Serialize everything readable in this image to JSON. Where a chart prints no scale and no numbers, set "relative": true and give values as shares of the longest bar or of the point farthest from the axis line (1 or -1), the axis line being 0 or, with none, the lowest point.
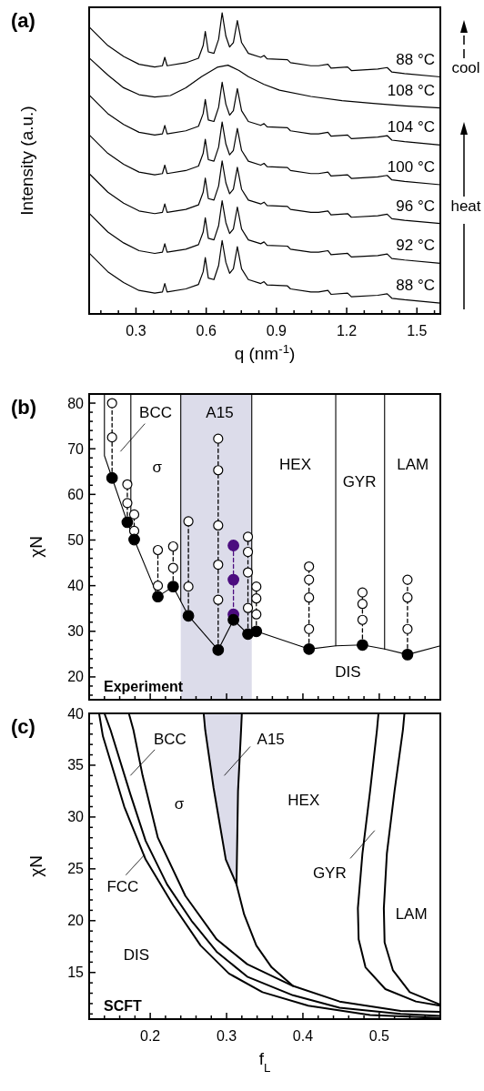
{
  "chart_data": [
    {
      "type": "line",
      "title": "(a)",
      "xlabel": "q (nm$^{-1}$)",
      "ylabel": "Intensity (a.u.)",
      "relative": true,
      "xlim": [
        0.1,
        1.6
      ],
      "xticks": [
        {
          "value": 0.15,
          "label": null
        },
        {
          "value": 0.225,
          "label": null
        },
        0.3,
        {
          "value": 0.375,
          "label": null
        },
        {
          "value": 0.45,
          "label": null
        },
        {
          "value": 0.525,
          "label": null
        },
        0.6,
        {
          "value": 0.675,
          "label": null
        },
        {
          "value": 0.75,
          "label": null
        },
        {
          "value": 0.825,
          "label": null
        },
        0.9,
        {
          "value": 0.975,
          "label": null
        },
        {
          "value": 1.05,
          "label": null
        },
        {
          "value": 1.125,
          "label": null
        },
        1.2,
        {
          "value": 1.275,
          "label": null
        },
        {
          "value": 1.35,
          "label": null
        },
        {
          "value": 1.425,
          "label": null
        },
        1.5,
        {
          "value": 1.575,
          "label": null
        }
      ],
      "x": [
        0.1,
        0.18,
        0.247,
        0.313,
        0.38,
        0.413,
        0.423,
        0.433,
        0.513,
        0.567,
        0.587,
        0.596,
        0.609,
        0.633,
        0.653,
        0.668,
        0.684,
        0.7,
        0.716,
        0.733,
        0.751,
        0.78,
        0.833,
        0.847,
        0.86,
        0.947,
        0.96,
        1.047,
        1.08,
        1.12,
        1.133,
        1.204,
        1.22,
        1.333,
        1.373,
        1.393,
        1.447,
        1.6
      ],
      "series": [
        {
          "name": "88 °C",
          "color": "#000000",
          "values": [
            0.202,
            0.14,
            0.104,
            0.078,
            0.069,
            0.073,
            0.101,
            0.073,
            0.083,
            0.098,
            0.14,
            0.187,
            0.119,
            0.114,
            0.161,
            0.244,
            0.171,
            0.135,
            0.15,
            0.223,
            0.15,
            0.114,
            0.101,
            0.107,
            0.096,
            0.093,
            0.083,
            0.073,
            0.073,
            0.078,
            0.065,
            0.069,
            0.057,
            0.062,
            0.067,
            0.052,
            0.047,
            0.036
          ]
        },
        {
          "name": "92 °C",
          "color": "#000000",
          "values": [
            0.334,
            0.272,
            0.236,
            0.21,
            0.201,
            0.205,
            0.233,
            0.205,
            0.215,
            0.23,
            0.272,
            0.319,
            0.251,
            0.246,
            0.293,
            0.376,
            0.303,
            0.267,
            0.282,
            0.355,
            0.282,
            0.246,
            0.233,
            0.239,
            0.228,
            0.225,
            0.215,
            0.205,
            0.205,
            0.21,
            0.197,
            0.201,
            0.189,
            0.194,
            0.199,
            0.184,
            0.179,
            0.168
          ]
        },
        {
          "name": "96 °C",
          "color": "#000000",
          "values": [
            0.466,
            0.404,
            0.368,
            0.342,
            0.333,
            0.337,
            0.365,
            0.337,
            0.347,
            0.362,
            0.404,
            0.451,
            0.383,
            0.378,
            0.425,
            0.508,
            0.435,
            0.399,
            0.414,
            0.487,
            0.414,
            0.378,
            0.365,
            0.371,
            0.36,
            0.357,
            0.347,
            0.337,
            0.337,
            0.342,
            0.329,
            0.333,
            0.321,
            0.326,
            0.331,
            0.316,
            0.311,
            0.3
          ]
        },
        {
          "name": "100 °C",
          "color": "#000000",
          "values": [
            0.595,
            0.533,
            0.497,
            0.471,
            0.462,
            0.466,
            0.494,
            0.466,
            0.476,
            0.491,
            0.533,
            0.58,
            0.512,
            0.507,
            0.554,
            0.637,
            0.564,
            0.528,
            0.543,
            0.616,
            0.543,
            0.507,
            0.494,
            0.5,
            0.489,
            0.486,
            0.476,
            0.466,
            0.466,
            0.471,
            0.458,
            0.462,
            0.45,
            0.455,
            0.46,
            0.445,
            0.44,
            0.429
          ]
        },
        {
          "name": "104 °C",
          "color": "#000000",
          "values": [
            0.727,
            0.665,
            0.629,
            0.603,
            0.594,
            0.598,
            0.626,
            0.598,
            0.608,
            0.623,
            0.665,
            0.712,
            0.644,
            0.639,
            0.686,
            0.769,
            0.696,
            0.66,
            0.675,
            0.748,
            0.675,
            0.639,
            0.626,
            0.632,
            0.621,
            0.618,
            0.608,
            0.598,
            0.598,
            0.603,
            0.59,
            0.594,
            0.582,
            0.587,
            0.592,
            0.577,
            0.572,
            0.561
          ]
        },
        {
          "name": "108 °C",
          "color": "#000000",
          "x": [
            0.1,
            0.18,
            0.247,
            0.313,
            0.38,
            0.447,
            0.513,
            0.58,
            0.647,
            0.693,
            0.74,
            0.78,
            0.847,
            0.913,
            1.047,
            1.18,
            1.313,
            1.447,
            1.6
          ],
          "values": [
            0.85,
            0.793,
            0.751,
            0.728,
            0.72,
            0.725,
            0.751,
            0.788,
            0.819,
            0.826,
            0.808,
            0.788,
            0.762,
            0.743,
            0.722,
            0.708,
            0.699,
            0.691,
            0.684
          ]
        },
        {
          "name": "88 °C",
          "color": "#000000",
          "values": [
            0.953,
            0.891,
            0.855,
            0.829,
            0.82,
            0.824,
            0.852,
            0.824,
            0.834,
            0.849,
            0.891,
            0.938,
            0.87,
            0.865,
            0.912,
            1.0,
            0.922,
            0.886,
            0.901,
            0.974,
            0.901,
            0.865,
            0.852,
            0.858,
            0.847,
            0.844,
            0.834,
            0.824,
            0.824,
            0.829,
            0.816,
            0.82,
            0.808,
            0.813,
            0.818,
            0.803,
            0.798,
            0.787
          ]
        }
      ],
      "annotations": [
        "cool",
        "heat"
      ]
    },
    {
      "type": "scatter",
      "title": "(b)",
      "ylabel": "χN",
      "xlim": [
        0.12,
        0.58
      ],
      "ylim": [
        15,
        82
      ],
      "tick_labels": "y",
      "marker": "circle",
      "xticks": [
        {
          "value": 0.14,
          "label": null
        },
        {
          "value": 0.16,
          "label": null
        },
        {
          "value": 0.18,
          "label": null
        },
        0.2,
        {
          "value": 0.22,
          "label": null
        },
        {
          "value": 0.24,
          "label": null
        },
        {
          "value": 0.26,
          "label": null
        },
        {
          "value": 0.28,
          "label": null
        },
        0.3,
        {
          "value": 0.32,
          "label": null
        },
        {
          "value": 0.34,
          "label": null
        },
        {
          "value": 0.36,
          "label": null
        },
        {
          "value": 0.38,
          "label": null
        },
        0.4,
        {
          "value": 0.42,
          "label": null
        },
        {
          "value": 0.44,
          "label": null
        },
        {
          "value": 0.46,
          "label": null
        },
        {
          "value": 0.48,
          "label": null
        },
        0.5,
        {
          "value": 0.52,
          "label": null
        },
        {
          "value": 0.54,
          "label": null
        },
        {
          "value": 0.56,
          "label": null
        }
      ],
      "yticks": [
        {
          "value": 16,
          "label": null
        },
        {
          "value": 18,
          "label": null
        },
        20,
        {
          "value": 22,
          "label": null
        },
        {
          "value": 24,
          "label": null
        },
        {
          "value": 26,
          "label": null
        },
        {
          "value": 28,
          "label": null
        },
        30,
        {
          "value": 32,
          "label": null
        },
        {
          "value": 34,
          "label": null
        },
        {
          "value": 36,
          "label": null
        },
        {
          "value": 38,
          "label": null
        },
        40,
        {
          "value": 42,
          "label": null
        },
        {
          "value": 44,
          "label": null
        },
        {
          "value": 46,
          "label": null
        },
        {
          "value": 48,
          "label": null
        },
        50,
        {
          "value": 52,
          "label": null
        },
        {
          "value": 54,
          "label": null
        },
        {
          "value": 56,
          "label": null
        },
        {
          "value": 58,
          "label": null
        },
        60,
        {
          "value": 62,
          "label": null
        },
        {
          "value": 64,
          "label": null
        },
        {
          "value": 66,
          "label": null
        },
        {
          "value": 68,
          "label": null
        },
        70,
        {
          "value": 72,
          "label": null
        },
        {
          "value": 74,
          "label": null
        },
        {
          "value": 76,
          "label": null
        },
        {
          "value": 78,
          "label": null
        },
        80
      ],
      "series": [
        {
          "type": "line",
          "color": "#000000",
          "marker": "none",
          "x": [
            0.14,
            0.14,
            0.15,
            0.17,
            0.179,
            0.21,
            0.23,
            0.24,
            0.25,
            0.289,
            0.309,
            0.328,
            0.333,
            0.339,
            0.408,
            0.443,
            0.478,
            0.507,
            0.537,
            0.58
          ],
          "values": [
            82,
            68.5,
            63.6,
            53.9,
            50.1,
            37.6,
            39.8,
            36.6,
            33.4,
            25.9,
            32.5,
            29.4,
            29.6,
            30.0,
            26.1,
            26.8,
            27.0,
            26.1,
            24.9,
            26.8
          ]
        },
        {
          "type": "line",
          "color": "#000000",
          "marker": "none",
          "x": [
            0.24,
            0.24
          ],
          "values": [
            82,
            36.6
          ]
        },
        {
          "type": "line",
          "color": "#000000",
          "marker": "none",
          "x": [
            0.333,
            0.333
          ],
          "values": [
            82,
            29.6
          ]
        },
        {
          "type": "line",
          "color": "#000000",
          "marker": "none",
          "x": [
            0.1746,
            0.1746
          ],
          "values": [
            82,
            53.0
          ]
        },
        {
          "type": "line",
          "color": "#000000",
          "marker": "none",
          "x": [
            0.443,
            0.443
          ],
          "values": [
            82,
            26.8
          ]
        },
        {
          "type": "line",
          "color": "#000000",
          "marker": "none",
          "x": [
            0.507,
            0.507
          ],
          "values": [
            82,
            26.1
          ]
        },
        {
          "type": "line",
          "color": "#000000",
          "marker": "none",
          "line_style": "dashed",
          "x": [
            0.15,
            0.15
          ],
          "values": [
            63.6,
            80.0
          ]
        },
        {
          "type": "line",
          "color": "#000000",
          "marker": "none",
          "line_style": "dashed",
          "x": [
            0.17,
            0.17
          ],
          "values": [
            53.9,
            62.2
          ]
        },
        {
          "type": "line",
          "color": "#000000",
          "marker": "none",
          "line_style": "dashed",
          "x": [
            0.179,
            0.179
          ],
          "values": [
            50.1,
            55.6
          ]
        },
        {
          "type": "line",
          "color": "#000000",
          "marker": "none",
          "line_style": "dashed",
          "x": [
            0.21,
            0.21
          ],
          "values": [
            37.6,
            47.8
          ]
        },
        {
          "type": "line",
          "color": "#000000",
          "marker": "none",
          "line_style": "dashed",
          "x": [
            0.23,
            0.23
          ],
          "values": [
            39.8,
            48.6
          ]
        },
        {
          "type": "line",
          "color": "#000000",
          "marker": "none",
          "line_style": "dashed",
          "x": [
            0.25,
            0.25
          ],
          "values": [
            33.4,
            54.1
          ]
        },
        {
          "type": "line",
          "color": "#000000",
          "marker": "none",
          "line_style": "dashed",
          "x": [
            0.289,
            0.289
          ],
          "values": [
            25.9,
            72.2
          ]
        },
        {
          "type": "line",
          "color": "#000000",
          "marker": "none",
          "line_style": "dashed",
          "x": [
            0.328,
            0.328
          ],
          "values": [
            29.4,
            50.7
          ]
        },
        {
          "type": "line",
          "color": "#000000",
          "marker": "none",
          "line_style": "dashed",
          "x": [
            0.339,
            0.339
          ],
          "values": [
            30.0,
            39.8
          ]
        },
        {
          "type": "line",
          "color": "#000000",
          "marker": "none",
          "line_style": "dashed",
          "x": [
            0.408,
            0.408
          ],
          "values": [
            26.1,
            44.2
          ]
        },
        {
          "type": "line",
          "color": "#000000",
          "marker": "none",
          "line_style": "dashed",
          "x": [
            0.478,
            0.478
          ],
          "values": [
            27.0,
            38.5
          ]
        },
        {
          "type": "line",
          "color": "#000000",
          "marker": "none",
          "line_style": "dashed",
          "x": [
            0.537,
            0.537
          ],
          "values": [
            24.9,
            41.3
          ]
        },
        {
          "type": "line",
          "color": "#4b0c7f",
          "line_style": "dashed",
          "x": [
            0.309,
            0.309,
            0.309
          ],
          "values": [
            48.8,
            41.3,
            33.7
          ]
        },
        {
          "color": "#ffffff",
          "x": [
            0.15,
            0.15,
            0.17,
            0.17,
            0.179,
            0.179,
            0.21,
            0.21,
            0.23,
            0.23,
            0.25,
            0.25,
            0.289,
            0.289,
            0.289,
            0.289,
            0.289,
            0.328,
            0.328,
            0.328,
            0.328,
            0.339,
            0.339,
            0.339,
            0.408,
            0.408,
            0.408,
            0.408,
            0.478,
            0.478,
            0.478,
            0.537,
            0.537,
            0.537
          ],
          "values": [
            80.0,
            72.5,
            62.2,
            58.1,
            55.6,
            52.0,
            47.8,
            40.0,
            48.6,
            43.9,
            54.1,
            39.8,
            72.2,
            65.3,
            53.2,
            44.6,
            36.9,
            50.7,
            47.4,
            42.9,
            35.1,
            39.8,
            37.2,
            33.7,
            44.2,
            41.3,
            37.4,
            30.5,
            38.5,
            36.0,
            32.5,
            41.3,
            37.4,
            30.5
          ]
        },
        {
          "color": "#000000",
          "x": [
            0.15,
            0.17,
            0.179,
            0.21,
            0.23,
            0.25,
            0.289,
            0.309,
            0.328,
            0.339,
            0.408,
            0.478,
            0.537
          ],
          "values": [
            63.6,
            53.9,
            50.1,
            37.6,
            39.8,
            33.4,
            25.9,
            32.5,
            29.4,
            30.0,
            26.1,
            27.0,
            24.9
          ]
        }
      ],
      "bands": [
        {
          "axis": "x",
          "from": 0.24,
          "to": 0.333,
          "color": "#dcdcea"
        }
      ],
      "annotations": [
        "BCC",
        "A15",
        "σ",
        "HEX",
        "GYR",
        "LAM",
        "DIS",
        "Experiment"
      ]
    },
    {
      "type": "line",
      "title": "(c)",
      "xlabel": "f$_{L}$",
      "ylabel": "χN",
      "xlim": [
        0.12,
        0.58
      ],
      "ylim": [
        10.5,
        40
      ],
      "xticks": [
        {
          "value": 0.14,
          "label": null
        },
        {
          "value": 0.16,
          "label": null
        },
        {
          "value": 0.18,
          "label": null
        },
        0.2,
        {
          "value": 0.22,
          "label": null
        },
        {
          "value": 0.24,
          "label": null
        },
        {
          "value": 0.26,
          "label": null
        },
        {
          "value": 0.28,
          "label": null
        },
        0.3,
        {
          "value": 0.32,
          "label": null
        },
        {
          "value": 0.34,
          "label": null
        },
        {
          "value": 0.36,
          "label": null
        },
        {
          "value": 0.38,
          "label": null
        },
        0.4,
        {
          "value": 0.42,
          "label": null
        },
        {
          "value": 0.44,
          "label": null
        },
        {
          "value": 0.46,
          "label": null
        },
        {
          "value": 0.48,
          "label": null
        },
        0.5,
        {
          "value": 0.52,
          "label": null
        },
        {
          "value": 0.54,
          "label": null
        },
        {
          "value": 0.56,
          "label": null
        }
      ],
      "yticks": [
        {
          "value": 11,
          "label": null
        },
        {
          "value": 12,
          "label": null
        },
        {
          "value": 13,
          "label": null
        },
        {
          "value": 14,
          "label": null
        },
        15,
        {
          "value": 16,
          "label": null
        },
        {
          "value": 17,
          "label": null
        },
        {
          "value": 18,
          "label": null
        },
        {
          "value": 19,
          "label": null
        },
        20,
        {
          "value": 21,
          "label": null
        },
        {
          "value": 22,
          "label": null
        },
        {
          "value": 23,
          "label": null
        },
        {
          "value": 24,
          "label": null
        },
        25,
        {
          "value": 26,
          "label": null
        },
        {
          "value": 27,
          "label": null
        },
        {
          "value": 28,
          "label": null
        },
        {
          "value": 29,
          "label": null
        },
        30,
        {
          "value": 31,
          "label": null
        },
        {
          "value": 32,
          "label": null
        },
        {
          "value": 33,
          "label": null
        },
        {
          "value": 34,
          "label": null
        },
        35,
        {
          "value": 36,
          "label": null
        },
        {
          "value": 37,
          "label": null
        },
        {
          "value": 38,
          "label": null
        },
        {
          "value": 39,
          "label": null
        },
        40
      ],
      "series": [
        {
          "color": "#000000",
          "x": [
            0.27,
            0.272,
            0.283,
            0.299,
            0.313,
            0.315,
            0.319,
            0.32
          ],
          "values": [
            40,
            38.4,
            32.8,
            25.9,
            23.5,
            32.5,
            38.4,
            40
          ]
        },
        {
          "color": "#000000",
          "x": [
            0.133,
            0.138,
            0.166,
            0.194,
            0.23,
            0.266,
            0.303,
            0.347,
            0.407,
            0.488,
            0.58
          ],
          "values": [
            40,
            37.8,
            31.0,
            25.9,
            21.5,
            17.6,
            14.9,
            13.1,
            11.8,
            10.9,
            10.6
          ]
        },
        {
          "color": "#000000",
          "x": [
            0.14,
            0.148,
            0.174,
            0.194,
            0.222,
            0.254,
            0.287,
            0.327,
            0.387,
            0.448,
            0.528,
            0.58
          ],
          "values": [
            40,
            38.4,
            32.2,
            27.7,
            23.5,
            20.0,
            17.0,
            14.6,
            12.8,
            11.6,
            11.0,
            10.8
          ]
        },
        {
          "color": "#000000",
          "x": [
            0.172,
            0.178,
            0.19,
            0.21,
            0.246,
            0.287,
            0.327,
            0.387,
            0.448,
            0.528,
            0.58
          ],
          "values": [
            40,
            38.4,
            34.0,
            28.0,
            22.4,
            18.2,
            15.8,
            13.7,
            12.2,
            11.3,
            11.2
          ]
        },
        {
          "color": "#000000",
          "x": [
            0.313,
            0.323,
            0.339,
            0.359,
            0.387
          ],
          "values": [
            23.5,
            20.6,
            17.6,
            15.5,
            13.7
          ]
        },
        {
          "color": "#000000",
          "x": [
            0.499,
            0.497,
            0.488,
            0.478,
            0.472,
            0.473,
            0.482,
            0.508,
            0.548,
            0.58
          ],
          "values": [
            40,
            38.4,
            32.5,
            26.5,
            21.2,
            18.2,
            15.5,
            13.4,
            12.2,
            11.8
          ]
        },
        {
          "color": "#000000",
          "x": [
            0.533,
            0.531,
            0.52,
            0.51,
            0.506,
            0.507,
            0.518,
            0.54,
            0.58
          ],
          "values": [
            40,
            38.4,
            32.5,
            26.5,
            21.2,
            17.9,
            15.2,
            13.1,
            11.9
          ]
        }
      ],
      "annotations": [
        "BCC",
        "A15",
        "σ",
        "HEX",
        "GYR",
        "LAM",
        "FCC",
        "DIS",
        "SCFT"
      ]
    }
  ]
}
